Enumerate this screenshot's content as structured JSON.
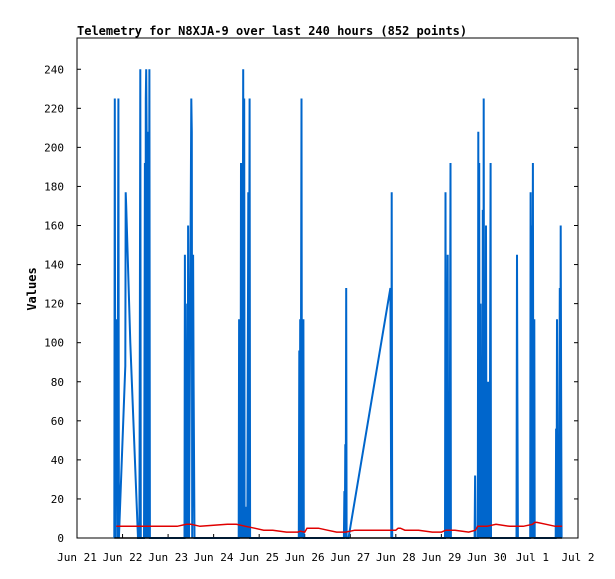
{
  "chart_data": {
    "type": "line",
    "title": "Telemetry for N8XJA-9 over last 240 hours (852 points)",
    "ylabel": "Values",
    "xlabel": "",
    "ylim": [
      0,
      256
    ],
    "xlim": [
      0,
      11
    ],
    "y_ticks": [
      0,
      20,
      40,
      60,
      80,
      100,
      120,
      140,
      160,
      180,
      200,
      220,
      240
    ],
    "x_ticks": [
      {
        "x": 0,
        "label": "Jun 21"
      },
      {
        "x": 1,
        "label": "Jun 22"
      },
      {
        "x": 2,
        "label": "Jun 23"
      },
      {
        "x": 3,
        "label": "Jun 24"
      },
      {
        "x": 4,
        "label": "Jun 25"
      },
      {
        "x": 5,
        "label": "Jun 26"
      },
      {
        "x": 6,
        "label": "Jun 27"
      },
      {
        "x": 7,
        "label": "Jun 28"
      },
      {
        "x": 8,
        "label": "Jun 29"
      },
      {
        "x": 9,
        "label": "Jun 30"
      },
      {
        "x": 10,
        "label": "Jul 1"
      },
      {
        "x": 11,
        "label": "Jul 2"
      }
    ],
    "grid": false,
    "series": [
      {
        "color": "#0066cc",
        "points": [
          [
            0.82,
            0
          ],
          [
            0.83,
            225
          ],
          [
            0.84,
            0
          ],
          [
            0.86,
            112
          ],
          [
            0.87,
            64
          ],
          [
            0.88,
            112
          ],
          [
            0.89,
            0
          ],
          [
            0.91,
            225
          ],
          [
            0.92,
            0
          ],
          [
            1.06,
            88
          ],
          [
            1.07,
            177
          ],
          [
            1.08,
            170
          ],
          [
            1.17,
            100
          ],
          [
            1.34,
            0
          ],
          [
            1.37,
            0
          ],
          [
            1.38,
            120
          ],
          [
            1.39,
            240
          ],
          [
            1.4,
            0
          ],
          [
            1.47,
            0
          ],
          [
            1.48,
            64
          ],
          [
            1.49,
            192
          ],
          [
            1.5,
            0
          ],
          [
            1.51,
            225
          ],
          [
            1.52,
            240
          ],
          [
            1.53,
            200
          ],
          [
            1.54,
            0
          ],
          [
            1.55,
            208
          ],
          [
            1.56,
            120
          ],
          [
            1.57,
            0
          ],
          [
            1.59,
            240
          ],
          [
            1.6,
            0
          ],
          [
            2.36,
            0
          ],
          [
            2.37,
            145
          ],
          [
            2.38,
            0
          ],
          [
            2.39,
            84
          ],
          [
            2.4,
            0
          ],
          [
            2.42,
            120
          ],
          [
            2.43,
            0
          ],
          [
            2.44,
            160
          ],
          [
            2.45,
            96
          ],
          [
            2.46,
            0
          ],
          [
            2.51,
            225
          ],
          [
            2.52,
            208
          ],
          [
            2.53,
            0
          ],
          [
            2.55,
            145
          ],
          [
            2.56,
            80
          ],
          [
            2.58,
            0
          ],
          [
            2.62,
            0
          ],
          [
            3.55,
            0
          ],
          [
            3.56,
            112
          ],
          [
            3.57,
            0
          ],
          [
            3.58,
            96
          ],
          [
            3.59,
            0
          ],
          [
            3.6,
            192
          ],
          [
            3.61,
            0
          ],
          [
            3.62,
            120
          ],
          [
            3.63,
            0
          ],
          [
            3.65,
            240
          ],
          [
            3.66,
            0
          ],
          [
            3.67,
            225
          ],
          [
            3.68,
            0
          ],
          [
            3.7,
            16
          ],
          [
            3.72,
            0
          ],
          [
            3.73,
            16
          ],
          [
            3.74,
            0
          ],
          [
            3.76,
            177
          ],
          [
            3.77,
            0
          ],
          [
            3.79,
            225
          ],
          [
            3.8,
            0
          ],
          [
            4.87,
            0
          ],
          [
            4.88,
            96
          ],
          [
            4.89,
            0
          ],
          [
            4.9,
            112
          ],
          [
            4.91,
            0
          ],
          [
            4.93,
            225
          ],
          [
            4.94,
            0
          ],
          [
            4.97,
            112
          ],
          [
            4.98,
            0
          ],
          [
            5.86,
            0
          ],
          [
            5.87,
            24
          ],
          [
            5.88,
            0
          ],
          [
            5.89,
            48
          ],
          [
            5.9,
            0
          ],
          [
            5.91,
            128
          ],
          [
            5.92,
            0
          ],
          [
            5.96,
            0
          ],
          [
            6.88,
            128
          ],
          [
            6.9,
            0
          ],
          [
            6.91,
            177
          ],
          [
            6.92,
            0
          ],
          [
            8.08,
            0
          ],
          [
            8.09,
            177
          ],
          [
            8.1,
            0
          ],
          [
            8.11,
            96
          ],
          [
            8.12,
            0
          ],
          [
            8.14,
            145
          ],
          [
            8.15,
            0
          ],
          [
            8.17,
            48
          ],
          [
            8.18,
            0
          ],
          [
            8.2,
            192
          ],
          [
            8.21,
            0
          ],
          [
            8.73,
            0
          ],
          [
            8.74,
            32
          ],
          [
            8.75,
            0
          ],
          [
            8.8,
            0
          ],
          [
            8.81,
            208
          ],
          [
            8.82,
            0
          ],
          [
            8.83,
            192
          ],
          [
            8.84,
            0
          ],
          [
            8.86,
            120
          ],
          [
            8.87,
            0
          ],
          [
            8.89,
            64
          ],
          [
            8.9,
            0
          ],
          [
            8.91,
            168
          ],
          [
            8.92,
            0
          ],
          [
            8.93,
            225
          ],
          [
            8.94,
            0
          ],
          [
            8.96,
            80
          ],
          [
            8.97,
            0
          ],
          [
            8.98,
            160
          ],
          [
            8.99,
            0
          ],
          [
            9.02,
            80
          ],
          [
            9.03,
            0
          ],
          [
            9.05,
            80
          ],
          [
            9.06,
            0
          ],
          [
            9.08,
            192
          ],
          [
            9.09,
            0
          ],
          [
            9.65,
            0
          ],
          [
            9.66,
            145
          ],
          [
            9.67,
            72
          ],
          [
            9.68,
            0
          ],
          [
            9.95,
            0
          ],
          [
            9.96,
            177
          ],
          [
            9.97,
            0
          ],
          [
            9.98,
            160
          ],
          [
            9.99,
            0
          ],
          [
            10.01,
            192
          ],
          [
            10.02,
            0
          ],
          [
            10.04,
            112
          ],
          [
            10.05,
            0
          ],
          [
            10.51,
            0
          ],
          [
            10.52,
            56
          ],
          [
            10.53,
            0
          ],
          [
            10.54,
            112
          ],
          [
            10.55,
            0
          ],
          [
            10.57,
            32
          ],
          [
            10.58,
            0
          ],
          [
            10.6,
            128
          ],
          [
            10.61,
            0
          ],
          [
            10.62,
            160
          ],
          [
            10.63,
            80
          ],
          [
            10.64,
            0
          ]
        ]
      },
      {
        "color": "#e00000",
        "points": [
          [
            0.86,
            6
          ],
          [
            1.0,
            6
          ],
          [
            1.3,
            6
          ],
          [
            1.5,
            6
          ],
          [
            1.6,
            6
          ],
          [
            1.8,
            6
          ],
          [
            2.2,
            6
          ],
          [
            2.4,
            7
          ],
          [
            2.5,
            7
          ],
          [
            2.7,
            6
          ],
          [
            3.0,
            6.5
          ],
          [
            3.3,
            7
          ],
          [
            3.5,
            7
          ],
          [
            3.7,
            6
          ],
          [
            3.9,
            5
          ],
          [
            4.1,
            4
          ],
          [
            4.3,
            4
          ],
          [
            4.6,
            3
          ],
          [
            4.85,
            3
          ],
          [
            4.9,
            3.5
          ],
          [
            5.0,
            3
          ],
          [
            5.05,
            5
          ],
          [
            5.1,
            5
          ],
          [
            5.3,
            5
          ],
          [
            5.5,
            4
          ],
          [
            5.7,
            3
          ],
          [
            5.9,
            3
          ],
          [
            6.1,
            4
          ],
          [
            6.3,
            4
          ],
          [
            6.6,
            4
          ],
          [
            6.9,
            4
          ],
          [
            7.0,
            4
          ],
          [
            7.05,
            5
          ],
          [
            7.1,
            5
          ],
          [
            7.2,
            4
          ],
          [
            7.5,
            4
          ],
          [
            7.8,
            3
          ],
          [
            8.0,
            3
          ],
          [
            8.1,
            4
          ],
          [
            8.3,
            4
          ],
          [
            8.6,
            3
          ],
          [
            8.75,
            4
          ],
          [
            8.8,
            6
          ],
          [
            9.0,
            6
          ],
          [
            9.2,
            7
          ],
          [
            9.5,
            6
          ],
          [
            9.8,
            6
          ],
          [
            10.0,
            7
          ],
          [
            10.05,
            8
          ],
          [
            10.1,
            8
          ],
          [
            10.3,
            7
          ],
          [
            10.5,
            6
          ],
          [
            10.65,
            6
          ]
        ]
      },
      {
        "color": "#000000",
        "points": [
          [
            0.82,
            0
          ],
          [
            10.65,
            0
          ]
        ]
      }
    ]
  }
}
